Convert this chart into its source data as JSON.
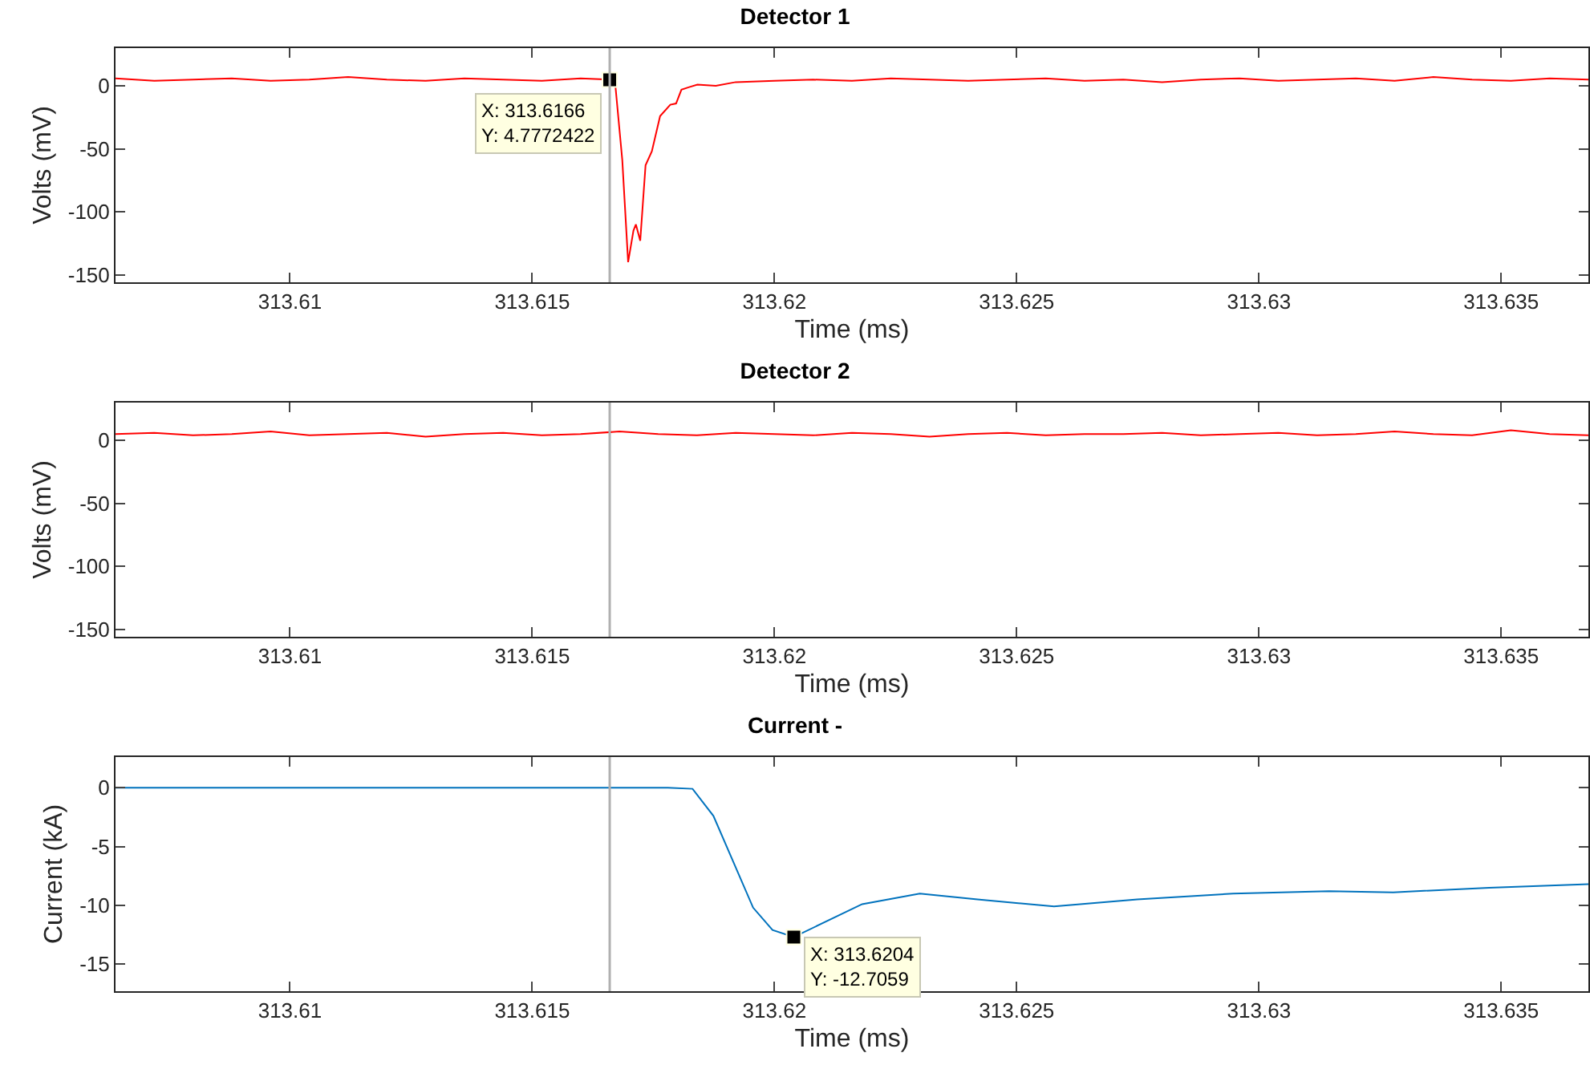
{
  "chart_data": [
    {
      "type": "line",
      "title": "Detector 1",
      "xlabel": "Time (ms)",
      "ylabel": "Volts (mV)",
      "color": "#ff0000",
      "x": [
        313.6064,
        313.6072,
        313.608,
        313.6088,
        313.6096,
        313.6104,
        313.6112,
        313.612,
        313.6128,
        313.6136,
        313.6144,
        313.6152,
        313.616,
        313.6166,
        313.61672,
        313.61686,
        313.61698,
        313.61709,
        313.61714,
        313.61723,
        313.61734,
        313.61747,
        313.61764,
        313.61785,
        313.61797,
        313.61808,
        313.61824,
        313.61841,
        313.61879,
        313.6192,
        313.62,
        313.6208,
        313.6216,
        313.6224,
        313.6232,
        313.624,
        313.6248,
        313.6256,
        313.6264,
        313.6272,
        313.628,
        313.6288,
        313.6296,
        313.6304,
        313.6312,
        313.632,
        313.6328,
        313.6336,
        313.6344,
        313.6352,
        313.636,
        313.6368
      ],
      "values": [
        6,
        4,
        5,
        6,
        4,
        5,
        7,
        5,
        4,
        6,
        5,
        4,
        6,
        5,
        -1,
        -59,
        -140,
        -115,
        -110,
        -123,
        -63,
        -52,
        -24,
        -15,
        -14,
        -3,
        -1,
        1,
        0,
        3,
        4,
        5,
        4,
        6,
        5,
        4,
        5,
        6,
        4,
        5,
        3,
        5,
        6,
        4,
        5,
        6,
        4,
        7,
        5,
        4,
        6,
        5
      ],
      "xlim": [
        313.6064,
        313.6368
      ],
      "xticks": [
        313.61,
        313.615,
        313.62,
        313.625,
        313.63,
        313.635
      ],
      "ylim": [
        -156,
        30
      ],
      "yticks": [
        -150,
        -100,
        -50,
        0
      ],
      "grid": false,
      "ref_lines": [
        {
          "axis": "x",
          "value": 313.6166,
          "color": "#b0b0b0"
        }
      ],
      "annotations": [
        {
          "text": "X: 313.6166\nY: 4.7772422",
          "x": 313.6166,
          "y": 4.7772422
        }
      ]
    },
    {
      "type": "line",
      "title": "Detector 2",
      "xlabel": "Time (ms)",
      "ylabel": "Volts (mV)",
      "color": "#ff0000",
      "x": [
        313.6064,
        313.6072,
        313.608,
        313.6088,
        313.6096,
        313.6104,
        313.6112,
        313.612,
        313.6128,
        313.6136,
        313.6144,
        313.6152,
        313.616,
        313.6168,
        313.6176,
        313.6184,
        313.6192,
        313.62,
        313.6208,
        313.6216,
        313.6224,
        313.6232,
        313.624,
        313.6248,
        313.6256,
        313.6264,
        313.6272,
        313.628,
        313.6288,
        313.6296,
        313.6304,
        313.6312,
        313.632,
        313.6328,
        313.6336,
        313.6344,
        313.6352,
        313.636,
        313.6368
      ],
      "values": [
        5,
        6,
        4,
        5,
        7,
        4,
        5,
        6,
        3,
        5,
        6,
        4,
        5,
        7,
        5,
        4,
        6,
        5,
        4,
        6,
        5,
        3,
        5,
        6,
        4,
        5,
        5,
        6,
        4,
        5,
        6,
        4,
        5,
        7,
        5,
        4,
        8,
        5,
        4
      ],
      "xlim": [
        313.6064,
        313.6368
      ],
      "xticks": [
        313.61,
        313.615,
        313.62,
        313.625,
        313.63,
        313.635
      ],
      "ylim": [
        -156,
        30
      ],
      "yticks": [
        -150,
        -100,
        -50,
        0
      ],
      "grid": false,
      "ref_lines": [
        {
          "axis": "x",
          "value": 313.6166,
          "color": "#b0b0b0"
        }
      ]
    },
    {
      "type": "line",
      "title": "Current -",
      "xlabel": "Time (ms)",
      "ylabel": "Current (kA)",
      "color": "#0072bd",
      "x": [
        313.6064,
        313.61,
        313.614,
        313.6166,
        313.6178,
        313.61831,
        313.61874,
        313.61956,
        313.61996,
        313.6204,
        313.62181,
        313.623,
        313.62419,
        313.62577,
        313.62749,
        313.62947,
        313.63145,
        313.63277,
        313.63475,
        313.6368
      ],
      "values": [
        0,
        0,
        0,
        0,
        0,
        -0.1,
        -2.4,
        -10.2,
        -12.1,
        -12.7,
        -9.9,
        -9.0,
        -9.5,
        -10.1,
        -9.5,
        -9.0,
        -8.8,
        -8.9,
        -8.5,
        -8.2
      ],
      "xlim": [
        313.6064,
        313.6368
      ],
      "xticks": [
        313.61,
        313.615,
        313.62,
        313.625,
        313.63,
        313.635
      ],
      "ylim": [
        -17.3,
        2.6
      ],
      "yticks": [
        -15,
        -10,
        -5,
        0
      ],
      "grid": false,
      "ref_lines": [
        {
          "axis": "x",
          "value": 313.6166,
          "color": "#b0b0b0"
        }
      ],
      "annotations": [
        {
          "text": "X: 313.6204\nY: -12.7059",
          "x": 313.6204,
          "y": -12.7059
        }
      ]
    }
  ]
}
